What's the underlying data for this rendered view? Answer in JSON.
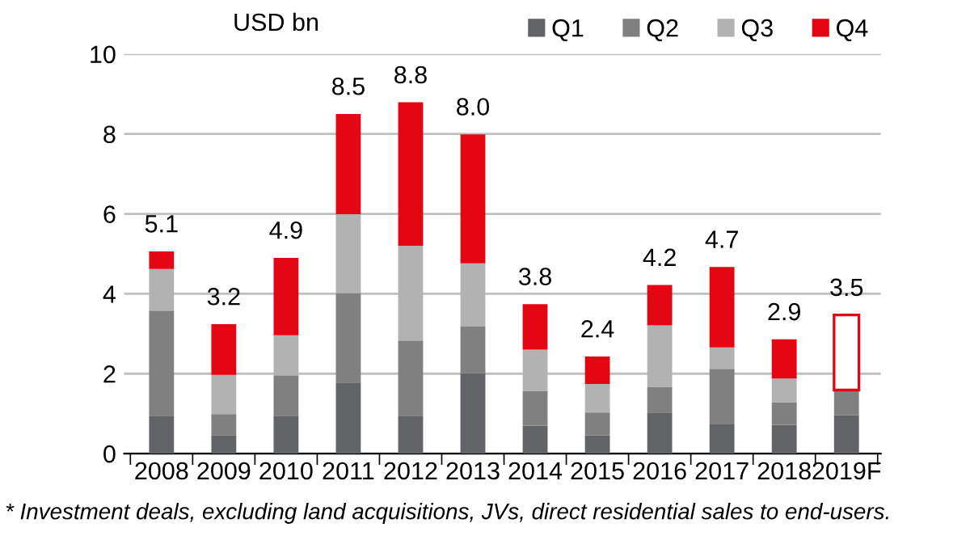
{
  "chart_data": {
    "type": "bar",
    "stacked": true,
    "ylabel": "USD bn",
    "categories": [
      "2008",
      "2009",
      "2010",
      "2011",
      "2012",
      "2013",
      "2014",
      "2015",
      "2016",
      "2017",
      "2018",
      "2019F"
    ],
    "series": [
      {
        "name": "Q1",
        "color": "#626366",
        "values": [
          0.95,
          0.45,
          0.95,
          1.78,
          0.95,
          2.01,
          0.7,
          0.46,
          1.03,
          0.73,
          0.72,
          0.96
        ]
      },
      {
        "name": "Q2",
        "color": "#808080",
        "values": [
          2.63,
          0.54,
          1.01,
          2.24,
          1.88,
          1.17,
          0.87,
          0.57,
          0.64,
          1.39,
          0.56,
          0.63
        ]
      },
      {
        "name": "Q3",
        "color": "#b2b2b2",
        "values": [
          1.04,
          0.98,
          1.0,
          1.97,
          2.37,
          1.58,
          1.03,
          0.71,
          1.54,
          0.54,
          0.6,
          null
        ]
      },
      {
        "name": "Q4",
        "color": "#e30613",
        "colors": [
          "#e30613",
          "#e30613",
          "#e30613",
          "#e30613",
          "#e30613",
          "#e30613",
          "#e30613",
          "#e30613",
          "#e30613",
          "#e30613",
          "#e30613",
          "#ffffff"
        ],
        "values": [
          0.44,
          1.27,
          1.94,
          2.51,
          3.59,
          3.23,
          1.14,
          0.69,
          1.01,
          2.01,
          0.98,
          1.88
        ]
      }
    ],
    "totals": [
      "5.1",
      "3.2",
      "4.9",
      "8.5",
      "8.8",
      "8.0",
      "3.8",
      "2.4",
      "4.2",
      "4.7",
      "2.9",
      "3.5"
    ],
    "ylim": [
      0,
      10
    ],
    "yticks": [
      0,
      2,
      4,
      6,
      8,
      10
    ],
    "grid": "y",
    "legend": "top right",
    "annotations": [
      "* Investment deals, excluding land acquisitions, JVs, direct residential sales to end-users."
    ]
  }
}
